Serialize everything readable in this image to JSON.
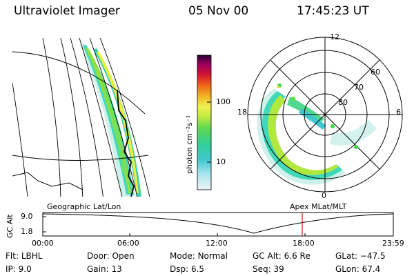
{
  "header": {
    "instrument": "Ultraviolet Imager",
    "date": "05 Nov 00",
    "time": "17:45:23 UT"
  },
  "colorbar": {
    "label": "photon cm⁻²s⁻¹",
    "ticks": [
      "100",
      "10"
    ]
  },
  "polar_plot": {
    "mlt_labels": [
      "12",
      "18",
      "6",
      "0"
    ],
    "lat_labels": [
      "60",
      "70",
      "80"
    ]
  },
  "panel_labels": {
    "left": "Geographic Lat/Lon",
    "right": "Apex MLat/MLT"
  },
  "altitude_plot": {
    "ylabel": "GC Alt",
    "yticks": [
      "9.0",
      "1.8"
    ],
    "xticks": [
      "00:00",
      "06:00",
      "12:00",
      "18:00",
      "23:59"
    ]
  },
  "info": {
    "row1": [
      {
        "label": "Flt:",
        "value": "LBHL"
      },
      {
        "label": "Door:",
        "value": "Open"
      },
      {
        "label": "Mode:",
        "value": "Normal"
      },
      {
        "label": "GC Alt:",
        "value": "6.6 Re"
      },
      {
        "label": "GLat:",
        "value": "−47.5"
      }
    ],
    "row2": [
      {
        "label": "IP:",
        "value": "9.0"
      },
      {
        "label": "Gain:",
        "value": "13"
      },
      {
        "label": "Dsp:",
        "value": "6.5"
      },
      {
        "label": "Seq:",
        "value": "39"
      },
      {
        "label": "GLon:",
        "value": "67.4"
      }
    ]
  },
  "colors": {
    "current_time_marker": "#d01010",
    "aurora_palette": [
      "#d8eef0",
      "#40c8d0",
      "#40d890",
      "#a0e040",
      "#e8f040",
      "#f0a020",
      "#e04020",
      "#c00050",
      "#400040"
    ]
  }
}
